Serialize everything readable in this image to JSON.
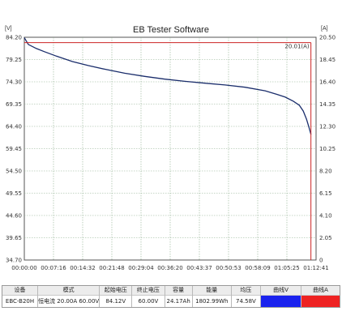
{
  "chart_data": {
    "type": "line",
    "title": "EB Tester Software",
    "left_unit": "[V]",
    "right_unit": "[A]",
    "x_ticks": [
      "00:00:00",
      "00:07:16",
      "00:14:32",
      "00:21:48",
      "00:29:04",
      "00:36:20",
      "00:43:37",
      "00:50:53",
      "00:58:09",
      "01:05:25",
      "01:12:41"
    ],
    "y_left_ticks": [
      "84.20",
      "79.25",
      "74.30",
      "69.35",
      "64.40",
      "59.45",
      "54.50",
      "49.55",
      "44.60",
      "39.65",
      "34.70"
    ],
    "y_right_ticks": [
      "20.50",
      "18.45",
      "16.40",
      "14.35",
      "12.30",
      "10.25",
      "8.20",
      "6.15",
      "4.10",
      "2.05",
      "0"
    ],
    "ylim_left": [
      34.7,
      84.2
    ],
    "ylim_right": [
      0,
      20.5
    ],
    "xlim_minutes": [
      0,
      72.68
    ],
    "grid": true,
    "annotation": "20.01(A)",
    "series": [
      {
        "unit": "V",
        "color": "#1a2d6b",
        "x_minutes": [
          0,
          1,
          3,
          5,
          8,
          12,
          16,
          20,
          25,
          30,
          35,
          40,
          45,
          50,
          55,
          60,
          63,
          65,
          67,
          68.5,
          69.5,
          70.3,
          70.9,
          71.4
        ],
        "y": [
          84.1,
          82.6,
          81.7,
          81.0,
          80.0,
          78.8,
          77.9,
          77.1,
          76.2,
          75.5,
          74.9,
          74.4,
          74.0,
          73.6,
          73.1,
          72.3,
          71.5,
          70.9,
          70.0,
          69.1,
          67.8,
          66.0,
          64.2,
          62.6
        ]
      },
      {
        "unit": "A",
        "color": "#cc2222",
        "x_minutes": [
          0,
          71.4
        ],
        "y": [
          20.01,
          20.01
        ]
      }
    ]
  },
  "status_bar": {
    "cells": [
      {
        "header": "设备",
        "value": "EBC-B20H"
      },
      {
        "header": "模式",
        "value": "恒电流 20.00A 60.00V"
      },
      {
        "header": "起始电压",
        "value": "84.12V"
      },
      {
        "header": "终止电压",
        "value": "60.00V"
      },
      {
        "header": "容量",
        "value": "24.17Ah"
      },
      {
        "header": "能量",
        "value": "1802.99Wh"
      },
      {
        "header": "均压",
        "value": "74.58V"
      },
      {
        "header": "曲线V",
        "value": "",
        "swatch": "#1a22ee"
      },
      {
        "header": "曲线A",
        "value": "",
        "swatch": "#ee2222"
      }
    ]
  }
}
